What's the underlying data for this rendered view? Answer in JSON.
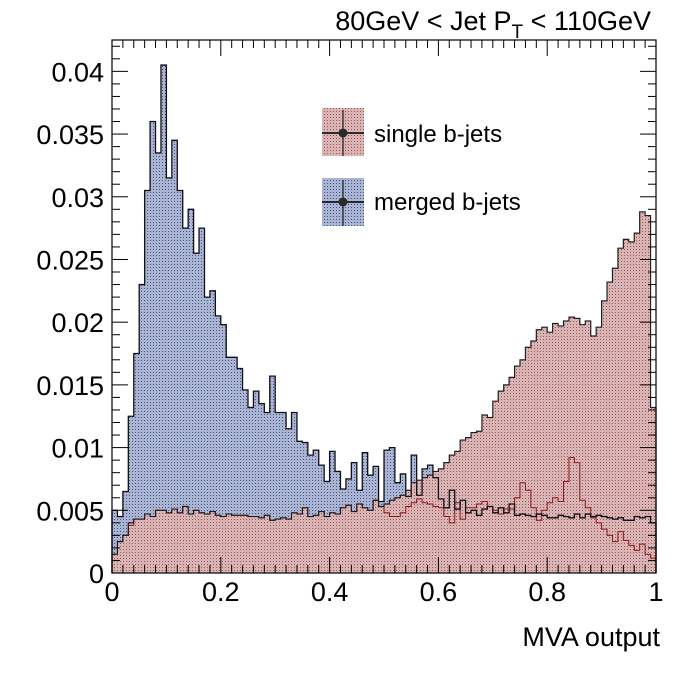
{
  "chart_data": {
    "type": "bar",
    "title_parts": [
      "80GeV < Jet P",
      "T",
      " < 110GeV"
    ],
    "xlabel": "MVA output",
    "ylabel": "",
    "xlim": [
      0,
      1
    ],
    "ylim": [
      0,
      0.0425
    ],
    "x_ticks": [
      0,
      0.2,
      0.4,
      0.6,
      0.8,
      1
    ],
    "x_tick_labels": [
      "0",
      "0.2",
      "0.4",
      "0.6",
      "0.8",
      "1"
    ],
    "y_ticks": [
      0,
      0.005,
      0.01,
      0.015,
      0.02,
      0.025,
      0.03,
      0.035,
      0.04
    ],
    "y_tick_labels": [
      "0",
      "0.005",
      "0.01",
      "0.015",
      "0.02",
      "0.025",
      "0.03",
      "0.035",
      "0.04"
    ],
    "grid": false,
    "legend_placement": "top-center",
    "bin_count": 100,
    "series": [
      {
        "name": "single b-jets",
        "color": "#d3a3a3",
        "edge": "#8b1a1a",
        "values": [
          0.0015,
          0.0025,
          0.003,
          0.0038,
          0.0043,
          0.0043,
          0.0047,
          0.0045,
          0.005,
          0.005,
          0.0048,
          0.0051,
          0.0048,
          0.0053,
          0.0047,
          0.005,
          0.0048,
          0.0047,
          0.0049,
          0.0046,
          0.0045,
          0.0047,
          0.0046,
          0.0046,
          0.0046,
          0.0045,
          0.0045,
          0.0044,
          0.0046,
          0.0042,
          0.0043,
          0.0044,
          0.0043,
          0.0048,
          0.0047,
          0.0052,
          0.0045,
          0.0046,
          0.0049,
          0.0045,
          0.0048,
          0.0047,
          0.0052,
          0.0054,
          0.0049,
          0.0055,
          0.0052,
          0.005,
          0.0058,
          0.0053,
          0.0048,
          0.0045,
          0.0045,
          0.0048,
          0.0053,
          0.0056,
          0.0059,
          0.0056,
          0.0055,
          0.0053,
          0.0052,
          0.0045,
          0.004,
          0.0056,
          0.0043,
          0.0052,
          0.0052,
          0.0055,
          0.0057,
          0.0053,
          0.005,
          0.0047,
          0.0051,
          0.0051,
          0.006,
          0.0072,
          0.0066,
          0.0052,
          0.0042,
          0.005,
          0.0056,
          0.006,
          0.0057,
          0.0073,
          0.0092,
          0.0088,
          0.0058,
          0.0052,
          0.0044,
          0.004,
          0.0035,
          0.003,
          0.0025,
          0.0033,
          0.0026,
          0.0022,
          0.0018,
          0.0023,
          0.0015,
          0.0012
        ],
        "hidden_values": [
          0.0005,
          0.0008,
          0.0015,
          0.002,
          0.0025,
          0.003,
          0.0035,
          0.004,
          0.0045,
          0.0048,
          0.0053,
          0.0055,
          0.0055,
          0.0051,
          0.0047,
          0.0047,
          0.0051,
          0.0048,
          0.0051,
          0.0049,
          0.0045,
          0.0044,
          0.0048,
          0.0051,
          0.0045,
          0.0048,
          0.0051,
          0.0049,
          0.0046,
          0.0043,
          0.0047,
          0.0046,
          0.0044,
          0.0049,
          0.0046,
          0.0046,
          0.0049,
          0.0046,
          0.0049,
          0.0045,
          0.0048,
          0.0049,
          0.0051,
          0.0052,
          0.0053,
          0.0055,
          0.0056,
          0.0058,
          0.0061,
          0.0064,
          0.0067,
          0.0069,
          0.0071,
          0.0073,
          0.0075,
          0.0078,
          0.008,
          0.0083,
          0.0085,
          0.0088,
          0.009,
          0.0092,
          0.0095,
          0.0097,
          0.0099,
          0.0102,
          0.0105,
          0.0108,
          0.0111,
          0.0114,
          0.0117,
          0.012,
          0.0122,
          0.0125,
          0.0128,
          0.0131,
          0.0134,
          0.0137,
          0.014,
          0.0143,
          0.0146,
          0.0149,
          0.0152,
          0.0155,
          0.0158,
          0.0162,
          0.0166,
          0.017,
          0.0174,
          0.0178,
          0.0182,
          0.0186,
          0.019,
          0.0194,
          0.0198,
          0.0202,
          0.0206,
          0.021,
          0.0005,
          0.0005
        ]
      },
      {
        "name": "merged b-jets",
        "color": "#9aa6c8",
        "edge": "#101018",
        "values": [
          0.005,
          0.0045,
          0.0065,
          0.0125,
          0.0175,
          0.023,
          0.0305,
          0.036,
          0.0335,
          0.0405,
          0.0315,
          0.0345,
          0.0305,
          0.0275,
          0.029,
          0.0255,
          0.0275,
          0.022,
          0.0225,
          0.0205,
          0.0198,
          0.0172,
          0.0172,
          0.0163,
          0.0146,
          0.0132,
          0.0145,
          0.0135,
          0.0128,
          0.0157,
          0.0128,
          0.0128,
          0.0115,
          0.0128,
          0.0105,
          0.0104,
          0.0094,
          0.0098,
          0.0086,
          0.0073,
          0.0097,
          0.0081,
          0.0067,
          0.0075,
          0.0088,
          0.0066,
          0.0096,
          0.0078,
          0.0085,
          0.0057,
          0.0098,
          0.01,
          0.0072,
          0.0079,
          0.0061,
          0.0094,
          0.0062,
          0.0083,
          0.0086,
          0.0076,
          0.0059,
          0.0052,
          0.0066,
          0.0051,
          0.0058,
          0.0048,
          0.005,
          0.0046,
          0.0051,
          0.0053,
          0.0048,
          0.0052,
          0.0048,
          0.0055,
          0.0046,
          0.0047,
          0.0046,
          0.0045,
          0.0047,
          0.0046,
          0.0044,
          0.0044,
          0.0046,
          0.0045,
          0.0044,
          0.0047,
          0.0044,
          0.0047,
          0.0045,
          0.0046,
          0.0045,
          0.0044,
          0.0043,
          0.0044,
          0.0042,
          0.0042,
          0.0045,
          0.0044,
          0.0045,
          0.004
        ]
      }
    ],
    "single_curve": [
      0.0015,
      0.0025,
      0.003,
      0.004,
      0.0043,
      0.0043,
      0.0047,
      0.0045,
      0.005,
      0.005,
      0.0048,
      0.0051,
      0.0048,
      0.0053,
      0.0047,
      0.005,
      0.0048,
      0.0047,
      0.0049,
      0.0046,
      0.0045,
      0.0047,
      0.0046,
      0.0046,
      0.0046,
      0.0045,
      0.0045,
      0.0044,
      0.0046,
      0.0042,
      0.0043,
      0.0044,
      0.0043,
      0.0048,
      0.0047,
      0.0052,
      0.0045,
      0.0046,
      0.0049,
      0.0045,
      0.0048,
      0.0047,
      0.0052,
      0.0054,
      0.0049,
      0.0055,
      0.0052,
      0.005,
      0.0058,
      0.0053,
      0.0055,
      0.0058,
      0.006,
      0.0062,
      0.0066,
      0.0072,
      0.0074,
      0.0076,
      0.0078,
      0.0081,
      0.0083,
      0.0088,
      0.0094,
      0.0097,
      0.0106,
      0.0108,
      0.0112,
      0.0113,
      0.0126,
      0.0124,
      0.0137,
      0.0145,
      0.015,
      0.0156,
      0.0165,
      0.017,
      0.018,
      0.0185,
      0.0194,
      0.0196,
      0.0192,
      0.0199,
      0.0197,
      0.0201,
      0.0204,
      0.0203,
      0.0198,
      0.0201,
      0.0189,
      0.0196,
      0.0217,
      0.0232,
      0.0243,
      0.0259,
      0.0266,
      0.0264,
      0.0271,
      0.0288,
      0.0285,
      0.0132
    ],
    "legend": [
      {
        "label": "single b-jets",
        "color": "#d3a3a3"
      },
      {
        "label": "merged b-jets",
        "color": "#9aa6c8"
      }
    ]
  }
}
